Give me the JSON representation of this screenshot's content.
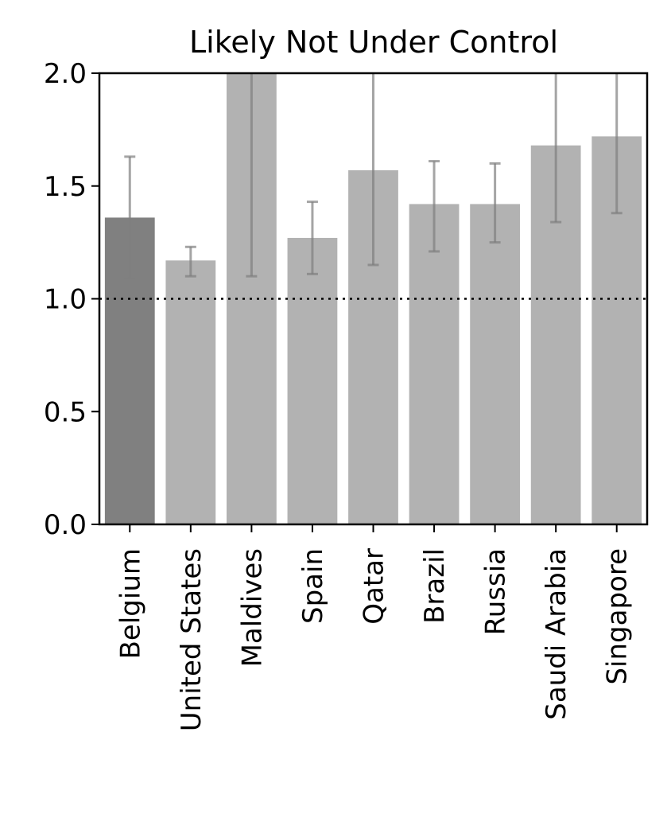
{
  "chart_data": {
    "type": "bar",
    "title": "Likely Not Under Control",
    "xlabel": "",
    "ylabel": "",
    "categories": [
      "Belgium",
      "United States",
      "Maldives",
      "Spain",
      "Qatar",
      "Brazil",
      "Russia",
      "Saudi Arabia",
      "Singapore"
    ],
    "values": [
      1.36,
      1.17,
      2.0,
      1.27,
      1.57,
      1.42,
      1.42,
      1.68,
      1.72
    ],
    "error_low": [
      1.09,
      1.1,
      1.1,
      1.11,
      1.15,
      1.21,
      1.25,
      1.34,
      1.38
    ],
    "error_high": [
      1.63,
      1.23,
      2.0,
      1.43,
      2.0,
      1.61,
      1.6,
      2.0,
      2.0
    ],
    "highlight_index": 0,
    "ylim": [
      0,
      2.0
    ],
    "yticks": [
      "0.0",
      "0.5",
      "1.0",
      "1.5",
      "2.0"
    ],
    "reference_line": 1.0,
    "grid": false,
    "colors": {
      "highlight_bar": "#808080",
      "bar": "#b2b2b2",
      "error_bar": "#7f7f7f",
      "reference_line": "#000000",
      "axis": "#000000"
    }
  }
}
